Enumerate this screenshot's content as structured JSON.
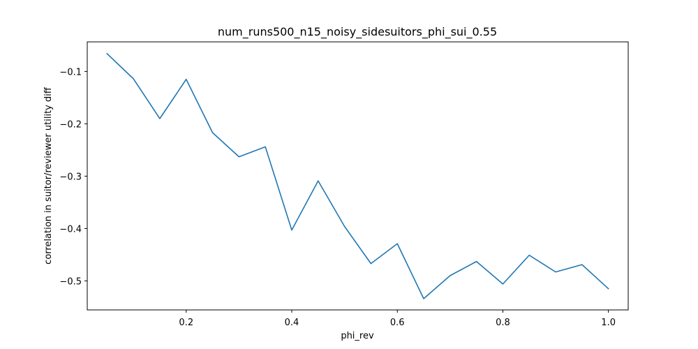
{
  "chart_data": {
    "type": "line",
    "title": "num_runs500_n15_noisy_sidesuitors_phi_sui_0.55",
    "xlabel": "phi_rev",
    "ylabel": "correlation in suitor/reviewer utility diff",
    "xlim": [
      0.0125,
      1.0375
    ],
    "ylim": [
      -0.5555,
      -0.0435
    ],
    "xticks": [
      0.2,
      0.4,
      0.6,
      0.8,
      1.0
    ],
    "xtick_labels": [
      "0.2",
      "0.4",
      "0.6",
      "0.8",
      "1.0"
    ],
    "yticks": [
      -0.1,
      -0.2,
      -0.3,
      -0.4,
      -0.5
    ],
    "ytick_labels": [
      "−0.1",
      "−0.2",
      "−0.3",
      "−0.4",
      "−0.5"
    ],
    "grid": false,
    "color": "#1f77b4",
    "x": [
      0.05,
      0.1,
      0.15,
      0.2,
      0.25,
      0.3,
      0.35,
      0.4,
      0.45,
      0.5,
      0.55,
      0.6,
      0.65,
      0.7,
      0.75,
      0.8,
      0.85,
      0.9,
      0.95,
      1.0
    ],
    "y": [
      -0.066,
      -0.114,
      -0.19,
      -0.115,
      -0.217,
      -0.263,
      -0.244,
      -0.403,
      -0.309,
      -0.396,
      -0.467,
      -0.429,
      -0.534,
      -0.49,
      -0.463,
      -0.506,
      -0.451,
      -0.483,
      -0.469,
      -0.515
    ]
  }
}
